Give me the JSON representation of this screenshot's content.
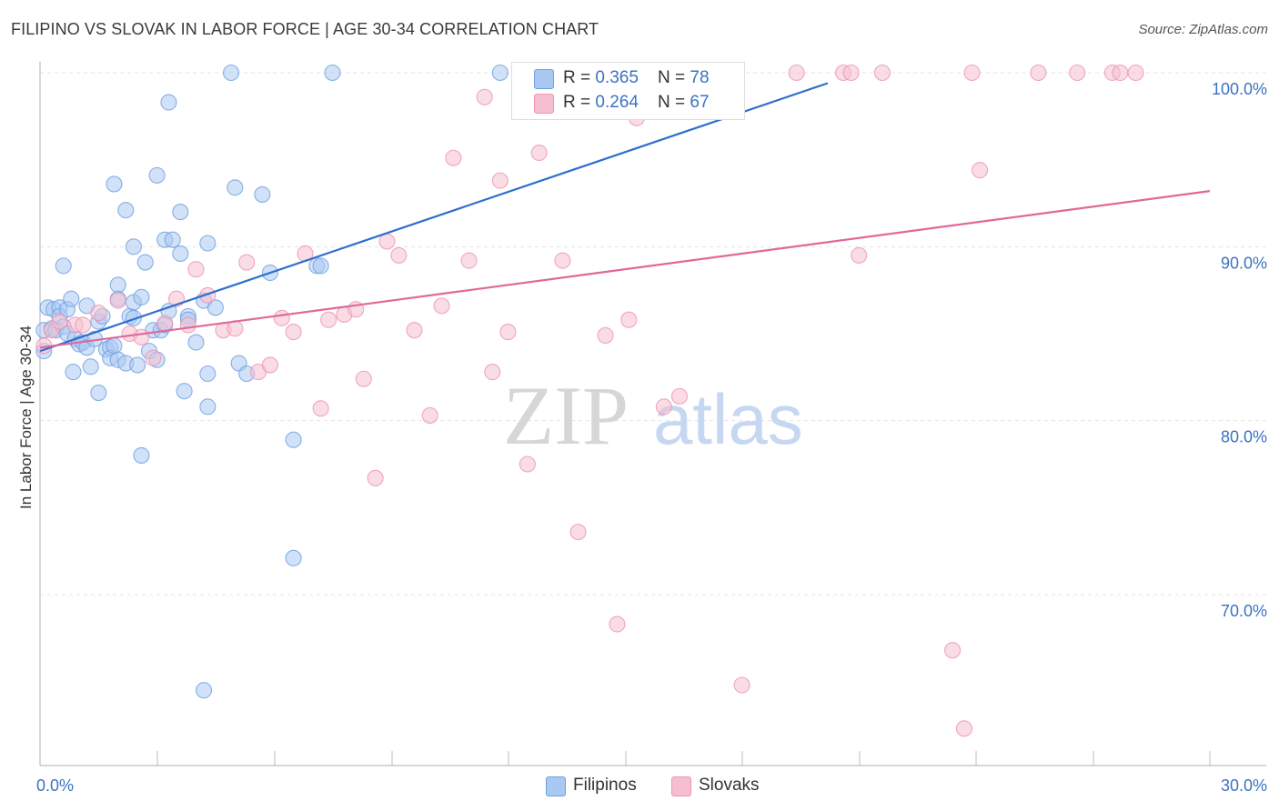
{
  "title": "FILIPINO VS SLOVAK IN LABOR FORCE | AGE 30-34 CORRELATION CHART",
  "source": "Source: ZipAtlas.com",
  "legend": {
    "rows": [
      {
        "r_label": "R = ",
        "r_value": "0.365",
        "n_label": "N = ",
        "n_value": "78"
      },
      {
        "r_label": "R = ",
        "r_value": "0.264",
        "n_label": "N = ",
        "n_value": "67"
      }
    ]
  },
  "bottom_legend": [
    "Filipinos",
    "Slovaks"
  ],
  "watermark": {
    "zip": "ZIP",
    "atlas": "atlas"
  },
  "colors": {
    "filipino_fill": "#a9c8f2",
    "filipino_stroke": "#6f9fe0",
    "filipino_line": "#2f6fce",
    "slovak_fill": "#f6bfd0",
    "slovak_stroke": "#ec94b2",
    "slovak_line": "#e0689a",
    "axis_label": "#3b72c4",
    "grid": "#e4e4e4"
  },
  "chart_data": {
    "type": "scatter",
    "xlabel": "",
    "ylabel": "In Labor Force | Age 30-34",
    "xlim": [
      0,
      30
    ],
    "ylim": [
      61,
      101.5
    ],
    "x_tick_labels": [
      {
        "value": 0,
        "label": "0.0%"
      },
      {
        "value": 30,
        "label": "30.0%"
      }
    ],
    "y_tick_labels": [
      {
        "value": 100,
        "label": "100.0%"
      },
      {
        "value": 90,
        "label": "90.0%"
      },
      {
        "value": 80,
        "label": "80.0%"
      },
      {
        "value": 70,
        "label": "70.0%"
      }
    ],
    "grid": true,
    "legend_position": "top-center",
    "series": [
      {
        "name": "Filipinos",
        "r": 0.365,
        "n": 78,
        "trend": {
          "x": [
            0,
            20.2
          ],
          "y": [
            84.0,
            99.4
          ]
        },
        "points": [
          [
            0.1,
            85.2
          ],
          [
            0.1,
            84.0
          ],
          [
            0.2,
            86.5
          ],
          [
            0.3,
            85.3
          ],
          [
            0.35,
            86.4
          ],
          [
            0.4,
            85.2
          ],
          [
            0.5,
            86.5
          ],
          [
            0.5,
            86.0
          ],
          [
            0.6,
            85.4
          ],
          [
            0.6,
            88.9
          ],
          [
            0.7,
            86.4
          ],
          [
            0.7,
            85.0
          ],
          [
            0.8,
            87.0
          ],
          [
            0.85,
            82.8
          ],
          [
            0.9,
            84.7
          ],
          [
            1.0,
            84.4
          ],
          [
            1.1,
            84.5
          ],
          [
            1.2,
            86.6
          ],
          [
            1.2,
            84.2
          ],
          [
            1.3,
            83.1
          ],
          [
            1.4,
            84.7
          ],
          [
            1.5,
            81.6
          ],
          [
            1.5,
            85.7
          ],
          [
            1.6,
            86.0
          ],
          [
            1.7,
            84.1
          ],
          [
            1.8,
            84.2
          ],
          [
            1.8,
            83.6
          ],
          [
            1.9,
            84.3
          ],
          [
            1.9,
            93.6
          ],
          [
            2.0,
            83.5
          ],
          [
            2.0,
            87.8
          ],
          [
            2.0,
            87.0
          ],
          [
            2.2,
            83.3
          ],
          [
            2.2,
            92.1
          ],
          [
            2.3,
            86.0
          ],
          [
            2.4,
            86.8
          ],
          [
            2.4,
            90.0
          ],
          [
            2.5,
            83.2
          ],
          [
            2.6,
            87.1
          ],
          [
            2.6,
            78.0
          ],
          [
            2.7,
            89.1
          ],
          [
            2.8,
            84.0
          ],
          [
            2.9,
            85.2
          ],
          [
            3.0,
            83.5
          ],
          [
            3.0,
            94.1
          ],
          [
            3.1,
            85.2
          ],
          [
            3.2,
            85.5
          ],
          [
            3.2,
            90.4
          ],
          [
            3.3,
            86.3
          ],
          [
            3.3,
            98.3
          ],
          [
            3.4,
            90.4
          ],
          [
            3.6,
            92.0
          ],
          [
            3.6,
            89.6
          ],
          [
            3.7,
            81.7
          ],
          [
            3.8,
            86.0
          ],
          [
            4.0,
            84.5
          ],
          [
            4.2,
            86.9
          ],
          [
            4.3,
            90.2
          ],
          [
            4.3,
            82.7
          ],
          [
            4.3,
            80.8
          ],
          [
            4.5,
            86.5
          ],
          [
            4.9,
            100.0
          ],
          [
            5.0,
            93.4
          ],
          [
            5.1,
            83.3
          ],
          [
            5.3,
            82.7
          ],
          [
            5.7,
            93.0
          ],
          [
            5.9,
            88.5
          ],
          [
            6.5,
            78.9
          ],
          [
            6.5,
            72.1
          ],
          [
            7.1,
            88.9
          ],
          [
            7.2,
            88.9
          ],
          [
            7.5,
            100.0
          ],
          [
            11.8,
            100.0
          ],
          [
            14.0,
            100.0
          ],
          [
            16.4,
            100.0
          ],
          [
            4.2,
            64.5
          ],
          [
            3.8,
            85.8
          ],
          [
            2.4,
            85.9
          ]
        ]
      },
      {
        "name": "Slovaks",
        "r": 0.264,
        "n": 67,
        "trend": {
          "x": [
            0,
            30
          ],
          "y": [
            84.2,
            93.2
          ]
        },
        "points": [
          [
            0.1,
            84.3
          ],
          [
            0.3,
            85.2
          ],
          [
            0.5,
            85.7
          ],
          [
            0.9,
            85.5
          ],
          [
            1.1,
            85.5
          ],
          [
            1.5,
            86.2
          ],
          [
            2.0,
            86.9
          ],
          [
            2.3,
            85.0
          ],
          [
            2.6,
            84.8
          ],
          [
            2.9,
            83.6
          ],
          [
            3.2,
            85.6
          ],
          [
            3.5,
            87.0
          ],
          [
            3.8,
            85.5
          ],
          [
            4.0,
            88.7
          ],
          [
            4.3,
            87.2
          ],
          [
            4.7,
            85.2
          ],
          [
            5.0,
            85.3
          ],
          [
            5.3,
            89.1
          ],
          [
            5.6,
            82.8
          ],
          [
            5.9,
            83.2
          ],
          [
            6.2,
            85.9
          ],
          [
            6.5,
            85.1
          ],
          [
            6.8,
            89.6
          ],
          [
            7.2,
            80.7
          ],
          [
            7.4,
            85.8
          ],
          [
            7.8,
            86.1
          ],
          [
            8.1,
            86.4
          ],
          [
            8.3,
            82.4
          ],
          [
            8.6,
            76.7
          ],
          [
            8.9,
            90.3
          ],
          [
            9.2,
            89.5
          ],
          [
            9.6,
            85.2
          ],
          [
            10.0,
            80.3
          ],
          [
            10.3,
            86.6
          ],
          [
            10.6,
            95.1
          ],
          [
            11.0,
            89.2
          ],
          [
            11.4,
            98.6
          ],
          [
            11.6,
            82.8
          ],
          [
            11.8,
            93.8
          ],
          [
            12.0,
            85.1
          ],
          [
            12.5,
            77.5
          ],
          [
            12.8,
            95.4
          ],
          [
            13.4,
            89.2
          ],
          [
            13.8,
            73.6
          ],
          [
            14.5,
            84.9
          ],
          [
            14.8,
            68.3
          ],
          [
            15.1,
            85.8
          ],
          [
            15.3,
            97.4
          ],
          [
            16.0,
            80.8
          ],
          [
            16.4,
            81.4
          ],
          [
            16.7,
            100.0
          ],
          [
            18.0,
            64.8
          ],
          [
            19.4,
            100.0
          ],
          [
            20.6,
            100.0
          ],
          [
            20.8,
            100.0
          ],
          [
            21.0,
            89.5
          ],
          [
            21.6,
            100.0
          ],
          [
            23.4,
            66.8
          ],
          [
            23.7,
            62.3
          ],
          [
            23.9,
            100.0
          ],
          [
            24.1,
            94.4
          ],
          [
            25.6,
            100.0
          ],
          [
            26.6,
            100.0
          ],
          [
            27.5,
            100.0
          ],
          [
            27.7,
            100.0
          ],
          [
            28.1,
            100.0
          ],
          [
            15.9,
            100.0
          ]
        ]
      }
    ]
  }
}
